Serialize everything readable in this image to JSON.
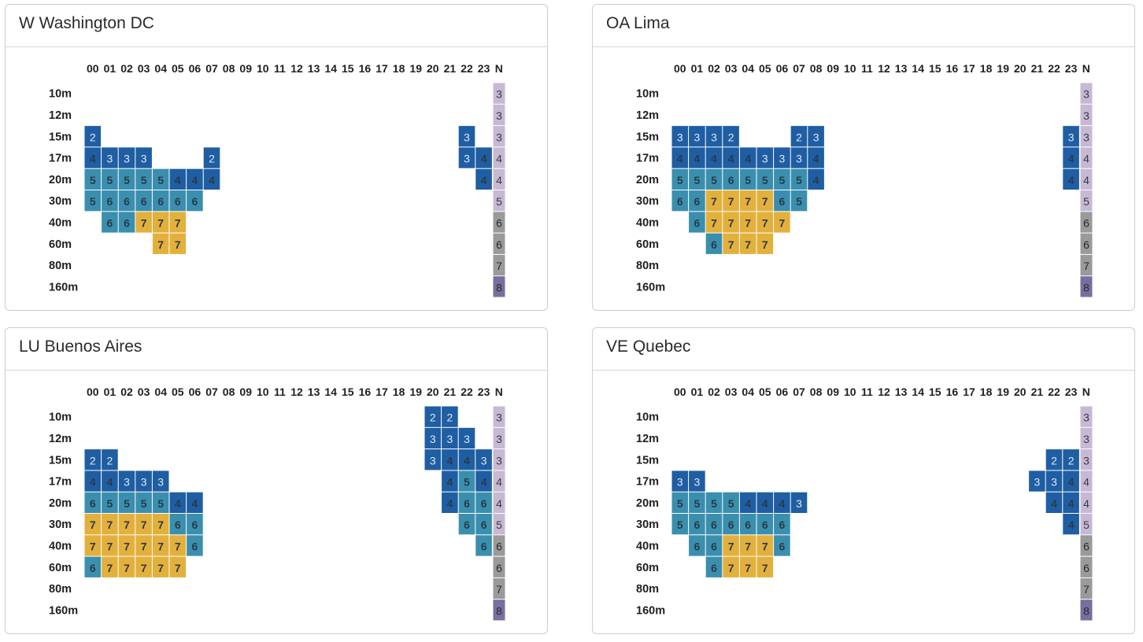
{
  "colors": {
    "level_2": "#1f5ea3",
    "level_3": "#1f5ea3",
    "level_4": "#1f5ea3",
    "level_5": "#3a8fae",
    "level_6": "#3a8fae",
    "level_7": "#e4b03c",
    "text_dark": "#2b3a4a",
    "text_light": "#dfe7f0",
    "n_3": "#c7b8d4",
    "n_4": "#c7b8d4",
    "n_5": "#c7b8d4",
    "n_6": "#9a9a9a",
    "n_7": "#9a9a9a",
    "n_8": "#7a6e9e"
  },
  "chart_data": [
    {
      "type": "heatmap",
      "title": "W Washington DC",
      "hours": [
        "00",
        "01",
        "02",
        "03",
        "04",
        "05",
        "06",
        "07",
        "08",
        "09",
        "10",
        "11",
        "12",
        "13",
        "14",
        "15",
        "16",
        "17",
        "18",
        "19",
        "20",
        "21",
        "22",
        "23"
      ],
      "n_label": "N",
      "bands": [
        "10m",
        "12m",
        "15m",
        "17m",
        "20m",
        "30m",
        "40m",
        "60m",
        "80m",
        "160m"
      ],
      "n_values": [
        3,
        3,
        3,
        4,
        4,
        5,
        6,
        6,
        7,
        8
      ],
      "cells": [
        [
          null,
          null,
          null,
          null,
          null,
          null,
          null,
          null,
          null,
          null,
          null,
          null,
          null,
          null,
          null,
          null,
          null,
          null,
          null,
          null,
          null,
          null,
          null,
          null
        ],
        [
          null,
          null,
          null,
          null,
          null,
          null,
          null,
          null,
          null,
          null,
          null,
          null,
          null,
          null,
          null,
          null,
          null,
          null,
          null,
          null,
          null,
          null,
          null,
          null
        ],
        [
          2,
          null,
          null,
          null,
          null,
          null,
          null,
          null,
          null,
          null,
          null,
          null,
          null,
          null,
          null,
          null,
          null,
          null,
          null,
          null,
          null,
          null,
          3,
          null
        ],
        [
          4,
          3,
          3,
          3,
          null,
          null,
          null,
          2,
          null,
          null,
          null,
          null,
          null,
          null,
          null,
          null,
          null,
          null,
          null,
          null,
          null,
          null,
          3,
          4
        ],
        [
          5,
          5,
          5,
          5,
          5,
          4,
          4,
          4,
          null,
          null,
          null,
          null,
          null,
          null,
          null,
          null,
          null,
          null,
          null,
          null,
          null,
          null,
          null,
          4
        ],
        [
          5,
          6,
          6,
          6,
          6,
          6,
          6,
          null,
          null,
          null,
          null,
          null,
          null,
          null,
          null,
          null,
          null,
          null,
          null,
          null,
          null,
          null,
          null,
          null
        ],
        [
          null,
          6,
          6,
          7,
          7,
          7,
          null,
          null,
          null,
          null,
          null,
          null,
          null,
          null,
          null,
          null,
          null,
          null,
          null,
          null,
          null,
          null,
          null,
          null
        ],
        [
          null,
          null,
          null,
          null,
          7,
          7,
          null,
          null,
          null,
          null,
          null,
          null,
          null,
          null,
          null,
          null,
          null,
          null,
          null,
          null,
          null,
          null,
          null,
          null
        ],
        [
          null,
          null,
          null,
          null,
          null,
          null,
          null,
          null,
          null,
          null,
          null,
          null,
          null,
          null,
          null,
          null,
          null,
          null,
          null,
          null,
          null,
          null,
          null,
          null
        ],
        [
          null,
          null,
          null,
          null,
          null,
          null,
          null,
          null,
          null,
          null,
          null,
          null,
          null,
          null,
          null,
          null,
          null,
          null,
          null,
          null,
          null,
          null,
          null,
          null
        ]
      ]
    },
    {
      "type": "heatmap",
      "title": "OA Lima",
      "hours": [
        "00",
        "01",
        "02",
        "03",
        "04",
        "05",
        "06",
        "07",
        "08",
        "09",
        "10",
        "11",
        "12",
        "13",
        "14",
        "15",
        "16",
        "17",
        "18",
        "19",
        "20",
        "21",
        "22",
        "23"
      ],
      "n_label": "N",
      "bands": [
        "10m",
        "12m",
        "15m",
        "17m",
        "20m",
        "30m",
        "40m",
        "60m",
        "80m",
        "160m"
      ],
      "n_values": [
        3,
        3,
        3,
        4,
        4,
        5,
        6,
        6,
        7,
        8
      ],
      "cells": [
        [
          null,
          null,
          null,
          null,
          null,
          null,
          null,
          null,
          null,
          null,
          null,
          null,
          null,
          null,
          null,
          null,
          null,
          null,
          null,
          null,
          null,
          null,
          null,
          null
        ],
        [
          null,
          null,
          null,
          null,
          null,
          null,
          null,
          null,
          null,
          null,
          null,
          null,
          null,
          null,
          null,
          null,
          null,
          null,
          null,
          null,
          null,
          null,
          null,
          null
        ],
        [
          3,
          3,
          3,
          2,
          null,
          null,
          null,
          2,
          3,
          null,
          null,
          null,
          null,
          null,
          null,
          null,
          null,
          null,
          null,
          null,
          null,
          null,
          null,
          3
        ],
        [
          4,
          4,
          4,
          4,
          4,
          3,
          3,
          3,
          4,
          null,
          null,
          null,
          null,
          null,
          null,
          null,
          null,
          null,
          null,
          null,
          null,
          null,
          null,
          4
        ],
        [
          5,
          5,
          5,
          6,
          5,
          5,
          5,
          5,
          4,
          null,
          null,
          null,
          null,
          null,
          null,
          null,
          null,
          null,
          null,
          null,
          null,
          null,
          null,
          4
        ],
        [
          6,
          6,
          7,
          7,
          7,
          7,
          6,
          5,
          null,
          null,
          null,
          null,
          null,
          null,
          null,
          null,
          null,
          null,
          null,
          null,
          null,
          null,
          null,
          null
        ],
        [
          null,
          6,
          7,
          7,
          7,
          7,
          7,
          null,
          null,
          null,
          null,
          null,
          null,
          null,
          null,
          null,
          null,
          null,
          null,
          null,
          null,
          null,
          null,
          null
        ],
        [
          null,
          null,
          6,
          7,
          7,
          7,
          null,
          null,
          null,
          null,
          null,
          null,
          null,
          null,
          null,
          null,
          null,
          null,
          null,
          null,
          null,
          null,
          null,
          null
        ],
        [
          null,
          null,
          null,
          null,
          null,
          null,
          null,
          null,
          null,
          null,
          null,
          null,
          null,
          null,
          null,
          null,
          null,
          null,
          null,
          null,
          null,
          null,
          null,
          null
        ],
        [
          null,
          null,
          null,
          null,
          null,
          null,
          null,
          null,
          null,
          null,
          null,
          null,
          null,
          null,
          null,
          null,
          null,
          null,
          null,
          null,
          null,
          null,
          null,
          null
        ]
      ]
    },
    {
      "type": "heatmap",
      "title": "LU Buenos Aires",
      "hours": [
        "00",
        "01",
        "02",
        "03",
        "04",
        "05",
        "06",
        "07",
        "08",
        "09",
        "10",
        "11",
        "12",
        "13",
        "14",
        "15",
        "16",
        "17",
        "18",
        "19",
        "20",
        "21",
        "22",
        "23"
      ],
      "n_label": "N",
      "bands": [
        "10m",
        "12m",
        "15m",
        "17m",
        "20m",
        "30m",
        "40m",
        "60m",
        "80m",
        "160m"
      ],
      "n_values": [
        3,
        3,
        3,
        4,
        4,
        5,
        6,
        6,
        7,
        8
      ],
      "cells": [
        [
          null,
          null,
          null,
          null,
          null,
          null,
          null,
          null,
          null,
          null,
          null,
          null,
          null,
          null,
          null,
          null,
          null,
          null,
          null,
          null,
          2,
          2,
          null,
          null
        ],
        [
          null,
          null,
          null,
          null,
          null,
          null,
          null,
          null,
          null,
          null,
          null,
          null,
          null,
          null,
          null,
          null,
          null,
          null,
          null,
          null,
          3,
          3,
          3,
          null
        ],
        [
          2,
          2,
          null,
          null,
          null,
          null,
          null,
          null,
          null,
          null,
          null,
          null,
          null,
          null,
          null,
          null,
          null,
          null,
          null,
          null,
          3,
          4,
          4,
          3
        ],
        [
          4,
          4,
          3,
          3,
          3,
          null,
          null,
          null,
          null,
          null,
          null,
          null,
          null,
          null,
          null,
          null,
          null,
          null,
          null,
          null,
          null,
          4,
          5,
          4
        ],
        [
          6,
          5,
          5,
          5,
          5,
          4,
          4,
          null,
          null,
          null,
          null,
          null,
          null,
          null,
          null,
          null,
          null,
          null,
          null,
          null,
          null,
          4,
          6,
          6
        ],
        [
          7,
          7,
          7,
          7,
          7,
          6,
          6,
          null,
          null,
          null,
          null,
          null,
          null,
          null,
          null,
          null,
          null,
          null,
          null,
          null,
          null,
          null,
          6,
          6
        ],
        [
          7,
          7,
          7,
          7,
          7,
          7,
          6,
          null,
          null,
          null,
          null,
          null,
          null,
          null,
          null,
          null,
          null,
          null,
          null,
          null,
          null,
          null,
          null,
          6
        ],
        [
          6,
          7,
          7,
          7,
          7,
          7,
          null,
          null,
          null,
          null,
          null,
          null,
          null,
          null,
          null,
          null,
          null,
          null,
          null,
          null,
          null,
          null,
          null,
          null
        ],
        [
          null,
          null,
          null,
          null,
          null,
          null,
          null,
          null,
          null,
          null,
          null,
          null,
          null,
          null,
          null,
          null,
          null,
          null,
          null,
          null,
          null,
          null,
          null,
          null
        ],
        [
          null,
          null,
          null,
          null,
          null,
          null,
          null,
          null,
          null,
          null,
          null,
          null,
          null,
          null,
          null,
          null,
          null,
          null,
          null,
          null,
          null,
          null,
          null,
          null
        ]
      ]
    },
    {
      "type": "heatmap",
      "title": "VE Quebec",
      "hours": [
        "00",
        "01",
        "02",
        "03",
        "04",
        "05",
        "06",
        "07",
        "08",
        "09",
        "10",
        "11",
        "12",
        "13",
        "14",
        "15",
        "16",
        "17",
        "18",
        "19",
        "20",
        "21",
        "22",
        "23"
      ],
      "n_label": "N",
      "bands": [
        "10m",
        "12m",
        "15m",
        "17m",
        "20m",
        "30m",
        "40m",
        "60m",
        "80m",
        "160m"
      ],
      "n_values": [
        3,
        3,
        3,
        4,
        4,
        5,
        6,
        6,
        7,
        8
      ],
      "cells": [
        [
          null,
          null,
          null,
          null,
          null,
          null,
          null,
          null,
          null,
          null,
          null,
          null,
          null,
          null,
          null,
          null,
          null,
          null,
          null,
          null,
          null,
          null,
          null,
          null
        ],
        [
          null,
          null,
          null,
          null,
          null,
          null,
          null,
          null,
          null,
          null,
          null,
          null,
          null,
          null,
          null,
          null,
          null,
          null,
          null,
          null,
          null,
          null,
          null,
          null
        ],
        [
          null,
          null,
          null,
          null,
          null,
          null,
          null,
          null,
          null,
          null,
          null,
          null,
          null,
          null,
          null,
          null,
          null,
          null,
          null,
          null,
          null,
          null,
          2,
          2
        ],
        [
          3,
          3,
          null,
          null,
          null,
          null,
          null,
          null,
          null,
          null,
          null,
          null,
          null,
          null,
          null,
          null,
          null,
          null,
          null,
          null,
          null,
          3,
          3,
          4
        ],
        [
          5,
          5,
          5,
          5,
          4,
          4,
          4,
          3,
          null,
          null,
          null,
          null,
          null,
          null,
          null,
          null,
          null,
          null,
          null,
          null,
          null,
          null,
          4,
          4
        ],
        [
          5,
          6,
          6,
          6,
          6,
          6,
          6,
          null,
          null,
          null,
          null,
          null,
          null,
          null,
          null,
          null,
          null,
          null,
          null,
          null,
          null,
          null,
          null,
          4
        ],
        [
          null,
          6,
          6,
          7,
          7,
          7,
          6,
          null,
          null,
          null,
          null,
          null,
          null,
          null,
          null,
          null,
          null,
          null,
          null,
          null,
          null,
          null,
          null,
          null
        ],
        [
          null,
          null,
          6,
          7,
          7,
          7,
          null,
          null,
          null,
          null,
          null,
          null,
          null,
          null,
          null,
          null,
          null,
          null,
          null,
          null,
          null,
          null,
          null,
          null
        ],
        [
          null,
          null,
          null,
          null,
          null,
          null,
          null,
          null,
          null,
          null,
          null,
          null,
          null,
          null,
          null,
          null,
          null,
          null,
          null,
          null,
          null,
          null,
          null,
          null
        ],
        [
          null,
          null,
          null,
          null,
          null,
          null,
          null,
          null,
          null,
          null,
          null,
          null,
          null,
          null,
          null,
          null,
          null,
          null,
          null,
          null,
          null,
          null,
          null,
          null
        ]
      ]
    }
  ]
}
